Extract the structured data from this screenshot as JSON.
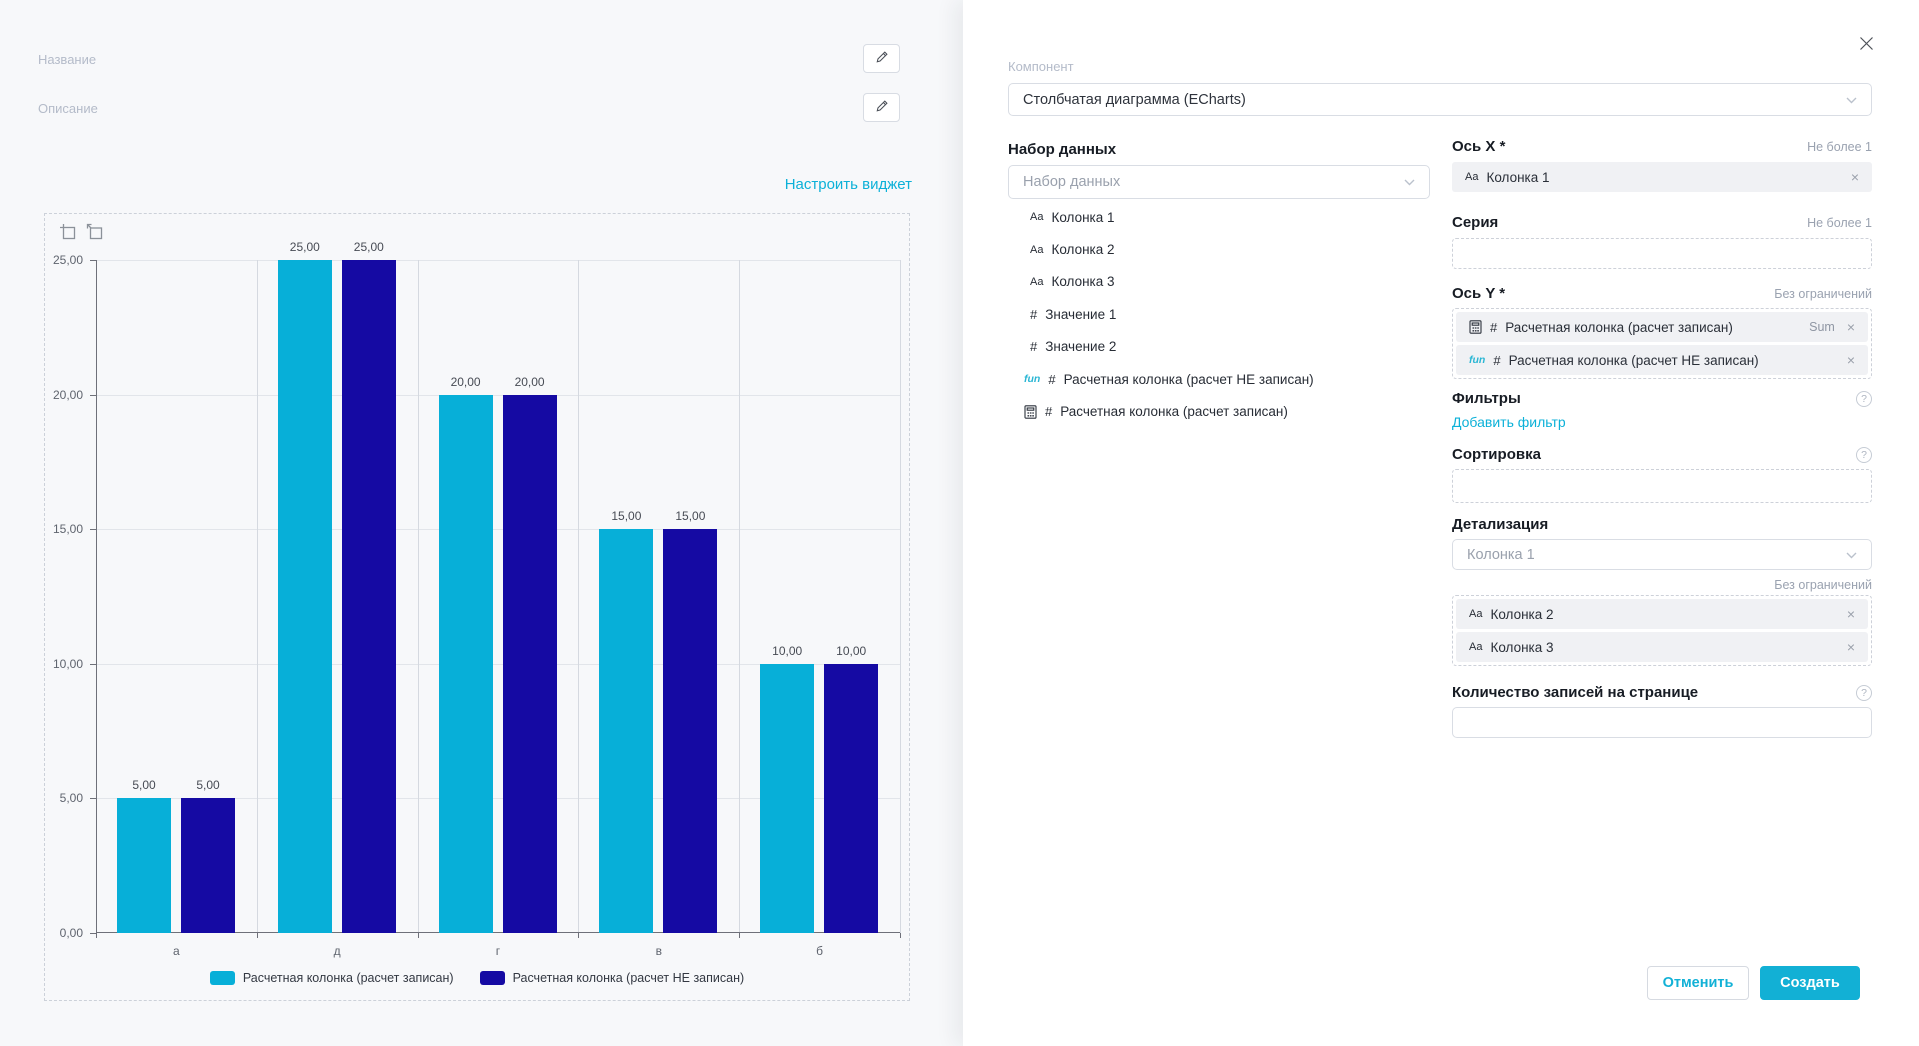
{
  "left": {
    "name_label": "Название",
    "description_label": "Описание",
    "configure_link": "Настроить виджет"
  },
  "chart_data": {
    "type": "bar",
    "title": "",
    "categories": [
      "а",
      "д",
      "г",
      "в",
      "б"
    ],
    "series": [
      {
        "name": "Расчетная колонка (расчет записан)",
        "color": "#07AFD8",
        "values": [
          5,
          25,
          20,
          15,
          10
        ]
      },
      {
        "name": "Расчетная колонка (расчет НЕ записан)",
        "color": "#150AA3",
        "values": [
          5,
          25,
          20,
          15,
          10
        ]
      }
    ],
    "bar_labels": [
      "5,00",
      "25,00",
      "20,00",
      "15,00",
      "10,00"
    ],
    "y_ticks": [
      {
        "value": 25,
        "label": "25,00"
      },
      {
        "value": 20,
        "label": "20,00"
      },
      {
        "value": 15,
        "label": "15,00"
      },
      {
        "value": 10,
        "label": "10,00"
      },
      {
        "value": 5,
        "label": "5,00"
      },
      {
        "value": 0,
        "label": "0,00"
      }
    ],
    "ylim": [
      0,
      25
    ],
    "grid": true,
    "legend_position": "bottom",
    "toolbox_icons": [
      "datazoom-icon",
      "restore-icon"
    ]
  },
  "panel": {
    "component": {
      "label": "Компонент",
      "value": "Столбчатая диаграмма (ECharts)"
    },
    "dataset": {
      "title": "Набор данных",
      "select_placeholder": "Набор данных",
      "fields": [
        {
          "type": "text",
          "label": "Колонка 1"
        },
        {
          "type": "text",
          "label": "Колонка 2"
        },
        {
          "type": "text",
          "label": "Колонка 3"
        },
        {
          "type": "number",
          "label": "Значение 1"
        },
        {
          "type": "number",
          "label": "Значение 2"
        },
        {
          "type": "function-number",
          "label": "Расчетная колонка (расчет НЕ записан)"
        },
        {
          "type": "calculated-number",
          "label": "Расчетная колонка (расчет записан)"
        }
      ]
    },
    "axis_x": {
      "label": "Ось X *",
      "limit": "Не более 1",
      "chips": [
        {
          "type": "text",
          "label": "Колонка 1"
        }
      ]
    },
    "series_field": {
      "label": "Серия",
      "limit": "Не более 1"
    },
    "axis_y": {
      "label": "Ось Y *",
      "limit": "Без ограничений",
      "chips": [
        {
          "type": "calculated-number",
          "label": "Расчетная колонка (расчет записан)",
          "aggregation": "Sum"
        },
        {
          "type": "function-number",
          "label": "Расчетная колонка (расчет НЕ записан)"
        }
      ]
    },
    "filters": {
      "label": "Фильтры",
      "add_link": "Добавить фильтр"
    },
    "sorting": {
      "label": "Сортировка"
    },
    "drilldown": {
      "label": "Детализация",
      "select_placeholder": "Колонка 1",
      "limit": "Без ограничений",
      "chips": [
        {
          "type": "text",
          "label": "Колонка 2"
        },
        {
          "type": "text",
          "label": "Колонка 3"
        }
      ]
    },
    "page_size": {
      "label": "Количество записей на странице"
    },
    "buttons": {
      "cancel": "Отменить",
      "create": "Создать"
    }
  },
  "icons": {
    "edit": "pencil",
    "close": "x-cross",
    "chevron_down": "v-chevron",
    "help": "circled-question",
    "text_field": "Aa",
    "number_field": "#",
    "function_field": "fun",
    "calculated_field": "calculator"
  },
  "colors": {
    "accent": "#0CB1D8",
    "bar_primary": "#07AFD8",
    "bar_secondary": "#150AA3",
    "page_bg": "#F7F8FA",
    "panel_bg": "#FFFFFF"
  }
}
